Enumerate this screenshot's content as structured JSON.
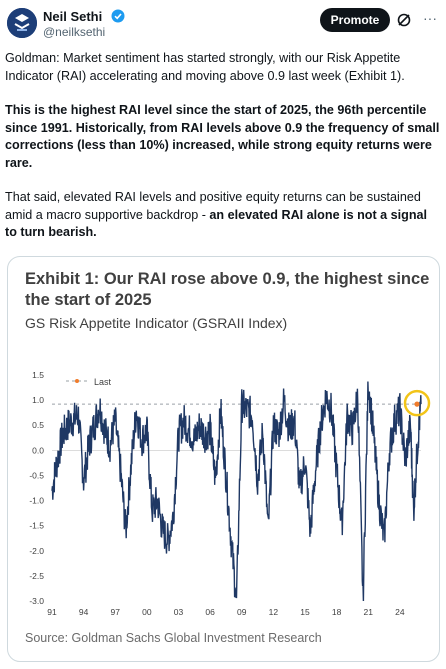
{
  "author": {
    "name": "Neil Sethi",
    "handle": "@neilksethi"
  },
  "header": {
    "promote_label": "Promote",
    "more_label": "···"
  },
  "tweet": {
    "p1": "Goldman: Market sentiment has started strongly, with our Risk Appetite Indicator (RAI) accelerating and moving above 0.9 last week (Exhibit 1).",
    "p2": "This is the highest RAI level since the start of 2025, the 96th percentile since 1991. Historically, from RAI levels above 0.9 the frequency of small corrections (less than 10%) increased, while strong equity returns were rare.",
    "p3_plain": "That said, elevated RAI levels and positive equity returns can be sustained amid a macro supportive backdrop - ",
    "p3_bold": "an elevated RAI alone is not a signal to turn bearish."
  },
  "exhibit": {
    "title": "Exhibit 1: Our RAI rose above 0.9, the highest since the start of 2025",
    "subtitle": "GS Risk Appetite Indicator (GSRAII Index)",
    "source": "Source: Goldman Sachs Global Investment Research"
  },
  "colors": {
    "series": "#1f3864",
    "last_line": "#9aa0a6",
    "last_dot": "#f07c2c",
    "highlight": "#f2c418",
    "promote_bg": "#0f1419",
    "verified": "#1d9bf0"
  },
  "icons": {
    "avatar": "avatar-logo",
    "verified": "verified-badge-icon",
    "grok": "grok-icon",
    "more": "more-icon"
  },
  "chart_data": {
    "type": "line",
    "title": "Exhibit 1: Our RAI rose above 0.9, the highest since the start of 2025",
    "subtitle": "GS Risk Appetite Indicator (GSRAII Index)",
    "xlabel": "",
    "ylabel": "",
    "ylim": [
      -3.0,
      1.5
    ],
    "xlim": [
      1991,
      2026
    ],
    "y_ticks": [
      "1.5",
      "1.0",
      "0.5",
      "0.0",
      "-0.5",
      "-1.0",
      "-1.5",
      "-2.0",
      "-2.5",
      "-3.0"
    ],
    "y_tick_values": [
      1.5,
      1.0,
      0.5,
      0.0,
      -0.5,
      -1.0,
      -1.5,
      -2.0,
      -2.5,
      -3.0
    ],
    "x_ticks": [
      "91",
      "94",
      "97",
      "00",
      "03",
      "06",
      "09",
      "12",
      "15",
      "18",
      "21",
      "24"
    ],
    "x_tick_values": [
      1991,
      1994,
      1997,
      2000,
      2003,
      2006,
      2009,
      2012,
      2015,
      2018,
      2021,
      2024
    ],
    "reference_line": {
      "name": "Last",
      "value": 0.92
    },
    "grid": false,
    "legend": "top-left",
    "series": [
      {
        "x": [
          1991,
          1991.5,
          1992,
          1992.5,
          1993,
          1993.5,
          1994,
          1994.5,
          1995,
          1995.5,
          1996,
          1996.5,
          1997,
          1997.5,
          1998,
          1998.5,
          1999,
          1999.5,
          2000,
          2000.5,
          2001,
          2001.5,
          2002,
          2002.5,
          2003,
          2003.5,
          2004,
          2004.5,
          2005,
          2005.5,
          2006,
          2006.5,
          2007,
          2007.5,
          2008,
          2008.5,
          2009,
          2009.5,
          2010,
          2010.5,
          2011,
          2011.5,
          2012,
          2012.5,
          2013,
          2013.5,
          2014,
          2014.5,
          2015,
          2015.5,
          2016,
          2016.5,
          2017,
          2017.5,
          2018,
          2018.5,
          2019,
          2019.5,
          2020,
          2020.5,
          2021,
          2021.5,
          2022,
          2022.5,
          2023,
          2023.5,
          2024,
          2024.5,
          2025,
          2025.3,
          2025.7,
          2026
        ],
        "values": [
          -0.8,
          -0.2,
          0.3,
          0.5,
          0.6,
          0.7,
          -0.6,
          0.1,
          0.5,
          0.9,
          0.4,
          0.1,
          0.6,
          -0.4,
          -1.6,
          -0.3,
          0.8,
          0.2,
          0.4,
          -1.2,
          -1.0,
          -1.6,
          -1.8,
          -1.3,
          0.3,
          0.6,
          0.4,
          0.2,
          0.5,
          0.3,
          0.4,
          -0.6,
          0.8,
          -0.5,
          -1.8,
          -3.0,
          0.9,
          0.8,
          0.7,
          -0.6,
          0.4,
          -1.6,
          0.5,
          0.3,
          1.0,
          0.4,
          0.6,
          -0.8,
          -0.2,
          -1.6,
          -0.4,
          0.5,
          1.1,
          0.8,
          -0.4,
          -1.5,
          0.7,
          0.4,
          1.1,
          -3.0,
          1.4,
          0.3,
          -1.0,
          -1.8,
          0.0,
          0.6,
          0.8,
          -0.2,
          0.5,
          -1.2,
          0.2,
          0.92
        ]
      }
    ]
  }
}
